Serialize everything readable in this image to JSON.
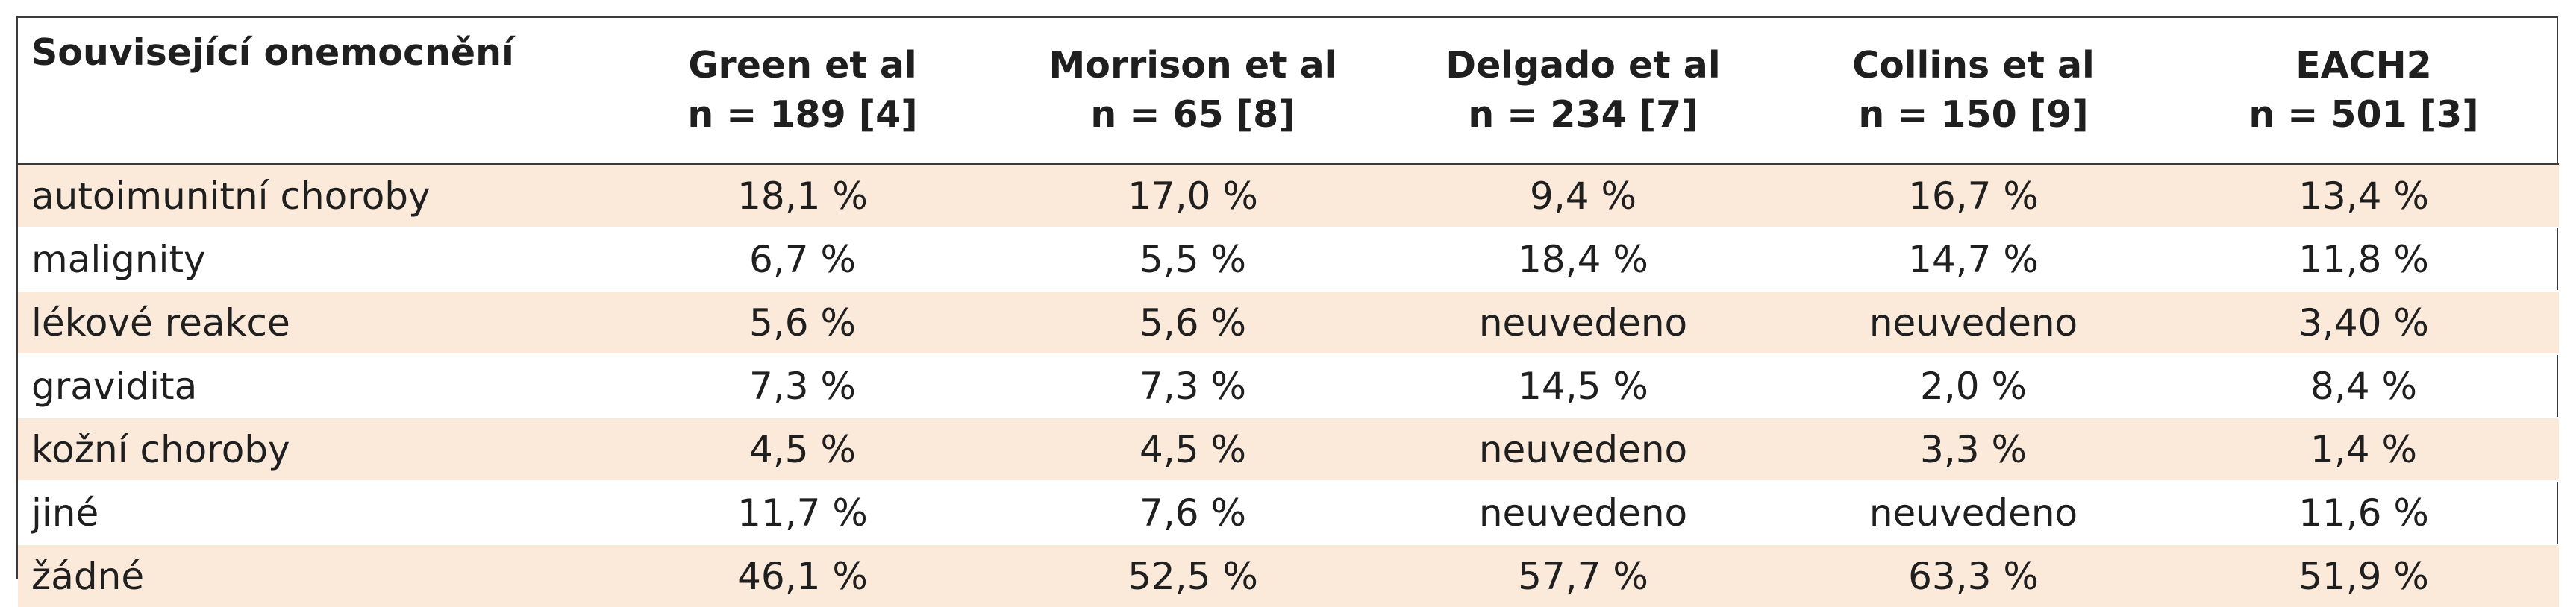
{
  "table": {
    "header": {
      "first": "Související onemocnění",
      "columns": [
        {
          "name": "Green et al",
          "n": "n = 189 [4]"
        },
        {
          "name": "Morrison et al",
          "n": "n = 65 [8]"
        },
        {
          "name": "Delgado et al",
          "n": "n = 234 [7]"
        },
        {
          "name": "Collins et al",
          "n": "n = 150 [9]"
        },
        {
          "name": "EACH2",
          "n": "n = 501 [3]"
        }
      ]
    },
    "rows": [
      {
        "label": "autoimunitní choroby",
        "values": [
          "18,1 %",
          "17,0 %",
          "9,4 %",
          "16,7 %",
          "13,4 %"
        ]
      },
      {
        "label": "malignity",
        "values": [
          "6,7 %",
          "5,5 %",
          "18,4 %",
          "14,7 %",
          "11,8 %"
        ]
      },
      {
        "label": "lékové reakce",
        "values": [
          "5,6 %",
          "5,6 %",
          "neuvedeno",
          "neuvedeno",
          "3,40 %"
        ]
      },
      {
        "label": "gravidita",
        "values": [
          "7,3 %",
          "7,3 %",
          "14,5 %",
          "2,0 %",
          "8,4 %"
        ]
      },
      {
        "label": "kožní choroby",
        "values": [
          "4,5 %",
          "4,5 %",
          "neuvedeno",
          "3,3 %",
          "1,4 %"
        ]
      },
      {
        "label": "jiné",
        "values": [
          "11,7 %",
          "7,6 %",
          "neuvedeno",
          "neuvedeno",
          "11,6 %"
        ]
      },
      {
        "label": "žádné",
        "values": [
          "46,1 %",
          "52,5 %",
          "57,7 %",
          "63,3 %",
          "51,9 %"
        ]
      }
    ],
    "shade_color": "#fbe9da",
    "border_color": "#3a3a3a"
  }
}
